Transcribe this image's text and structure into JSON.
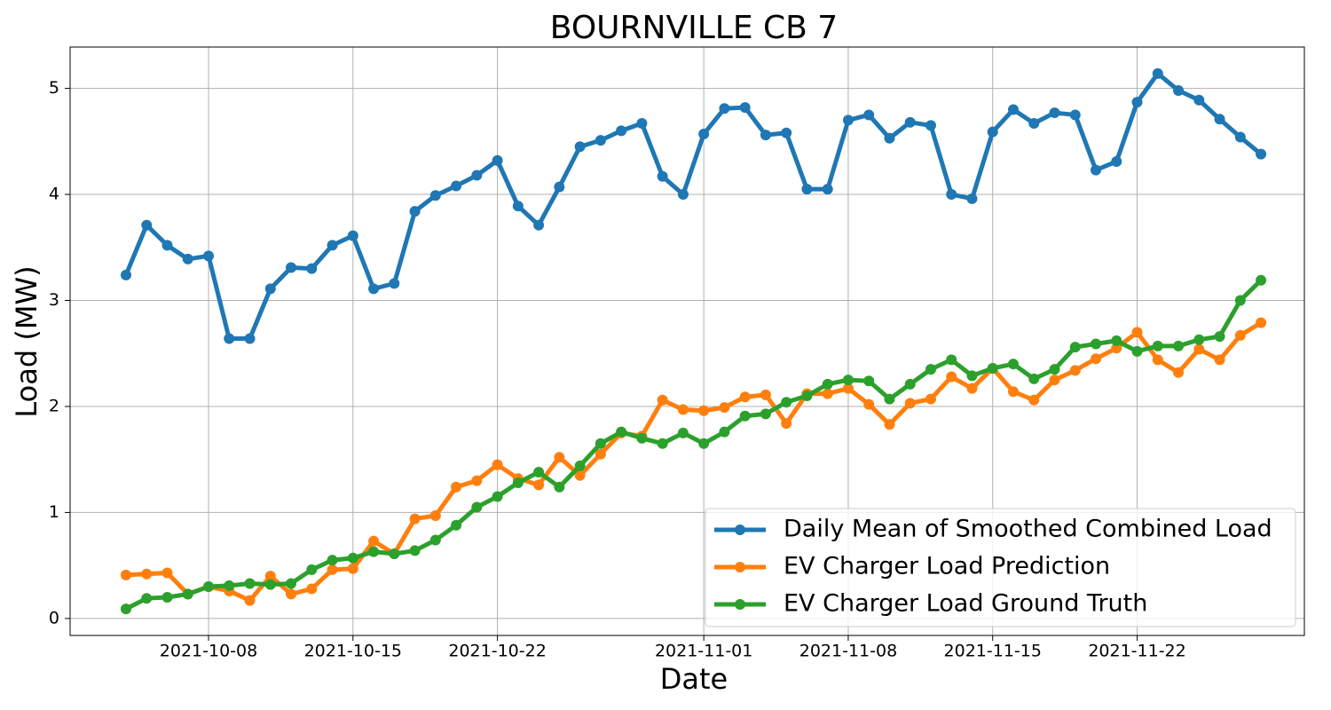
{
  "chart_data": {
    "type": "line",
    "title": "BOURNVILLE CB 7",
    "x_label": "Date",
    "y_label": "Load (MW)",
    "x": [
      "2021-10-04",
      "2021-10-05",
      "2021-10-06",
      "2021-10-07",
      "2021-10-08",
      "2021-10-09",
      "2021-10-10",
      "2021-10-11",
      "2021-10-12",
      "2021-10-13",
      "2021-10-14",
      "2021-10-15",
      "2021-10-16",
      "2021-10-17",
      "2021-10-18",
      "2021-10-19",
      "2021-10-20",
      "2021-10-21",
      "2021-10-22",
      "2021-10-23",
      "2021-10-24",
      "2021-10-25",
      "2021-10-26",
      "2021-10-27",
      "2021-10-28",
      "2021-10-29",
      "2021-10-30",
      "2021-10-31",
      "2021-11-01",
      "2021-11-02",
      "2021-11-03",
      "2021-11-04",
      "2021-11-05",
      "2021-11-06",
      "2021-11-07",
      "2021-11-08",
      "2021-11-09",
      "2021-11-10",
      "2021-11-11",
      "2021-11-12",
      "2021-11-13",
      "2021-11-14",
      "2021-11-15",
      "2021-11-16",
      "2021-11-17",
      "2021-11-18",
      "2021-11-19",
      "2021-11-20",
      "2021-11-21",
      "2021-11-22",
      "2021-11-23",
      "2021-11-24",
      "2021-11-25",
      "2021-11-26",
      "2021-11-27",
      "2021-11-28"
    ],
    "series": [
      {
        "name": "Daily Mean of Smoothed Combined Load",
        "color": "#1f77b4",
        "values": [
          3.24,
          3.71,
          3.52,
          3.39,
          3.42,
          2.64,
          2.64,
          3.11,
          3.31,
          3.3,
          3.52,
          3.61,
          3.11,
          3.16,
          3.84,
          3.99,
          4.08,
          4.18,
          4.32,
          3.89,
          3.71,
          4.07,
          4.45,
          4.51,
          4.6,
          4.67,
          4.17,
          4.0,
          4.57,
          4.81,
          4.82,
          4.56,
          4.58,
          4.05,
          4.05,
          4.7,
          4.75,
          4.53,
          4.68,
          4.65,
          4.0,
          3.96,
          4.59,
          4.8,
          4.67,
          4.77,
          4.75,
          4.23,
          4.31,
          4.87,
          5.14,
          4.98,
          4.89,
          4.71,
          4.54,
          4.38
        ]
      },
      {
        "name": "EV Charger Load Prediction",
        "color": "#ff7f0e",
        "values": [
          0.41,
          0.42,
          0.43,
          0.23,
          0.3,
          0.26,
          0.17,
          0.4,
          0.23,
          0.28,
          0.46,
          0.47,
          0.73,
          0.61,
          0.94,
          0.97,
          1.24,
          1.3,
          1.45,
          1.32,
          1.26,
          1.52,
          1.35,
          1.55,
          1.75,
          1.72,
          2.06,
          1.97,
          1.96,
          1.99,
          2.09,
          2.11,
          1.84,
          2.12,
          2.12,
          2.17,
          2.02,
          1.83,
          2.03,
          2.07,
          2.28,
          2.17,
          2.36,
          2.14,
          2.06,
          2.25,
          2.34,
          2.45,
          2.55,
          2.7,
          2.44,
          2.32,
          2.54,
          2.44,
          2.67,
          2.79
        ]
      },
      {
        "name": "EV Charger Load Ground Truth",
        "color": "#2ca02c",
        "values": [
          0.09,
          0.19,
          0.2,
          0.23,
          0.3,
          0.31,
          0.33,
          0.32,
          0.33,
          0.46,
          0.55,
          0.57,
          0.63,
          0.61,
          0.64,
          0.74,
          0.88,
          1.05,
          1.15,
          1.28,
          1.38,
          1.24,
          1.44,
          1.65,
          1.76,
          1.7,
          1.65,
          1.75,
          1.65,
          1.76,
          1.91,
          1.93,
          2.04,
          2.1,
          2.21,
          2.25,
          2.24,
          2.07,
          2.21,
          2.35,
          2.44,
          2.29,
          2.36,
          2.4,
          2.26,
          2.35,
          2.56,
          2.59,
          2.62,
          2.52,
          2.57,
          2.57,
          2.63,
          2.66,
          3.0,
          3.19
        ]
      }
    ],
    "xlim": [
      "2021-10-01T07:00:00Z",
      "2021-11-30T02:30:00Z"
    ],
    "xticks": [
      "2021-10-08",
      "2021-10-15",
      "2021-10-22",
      "2021-11-01",
      "2021-11-08",
      "2021-11-15",
      "2021-11-22"
    ],
    "ylim": [
      -0.16,
      5.39
    ],
    "yticks": [
      0,
      1,
      2,
      3,
      4,
      5
    ],
    "grid": true,
    "legend": "lower right"
  }
}
